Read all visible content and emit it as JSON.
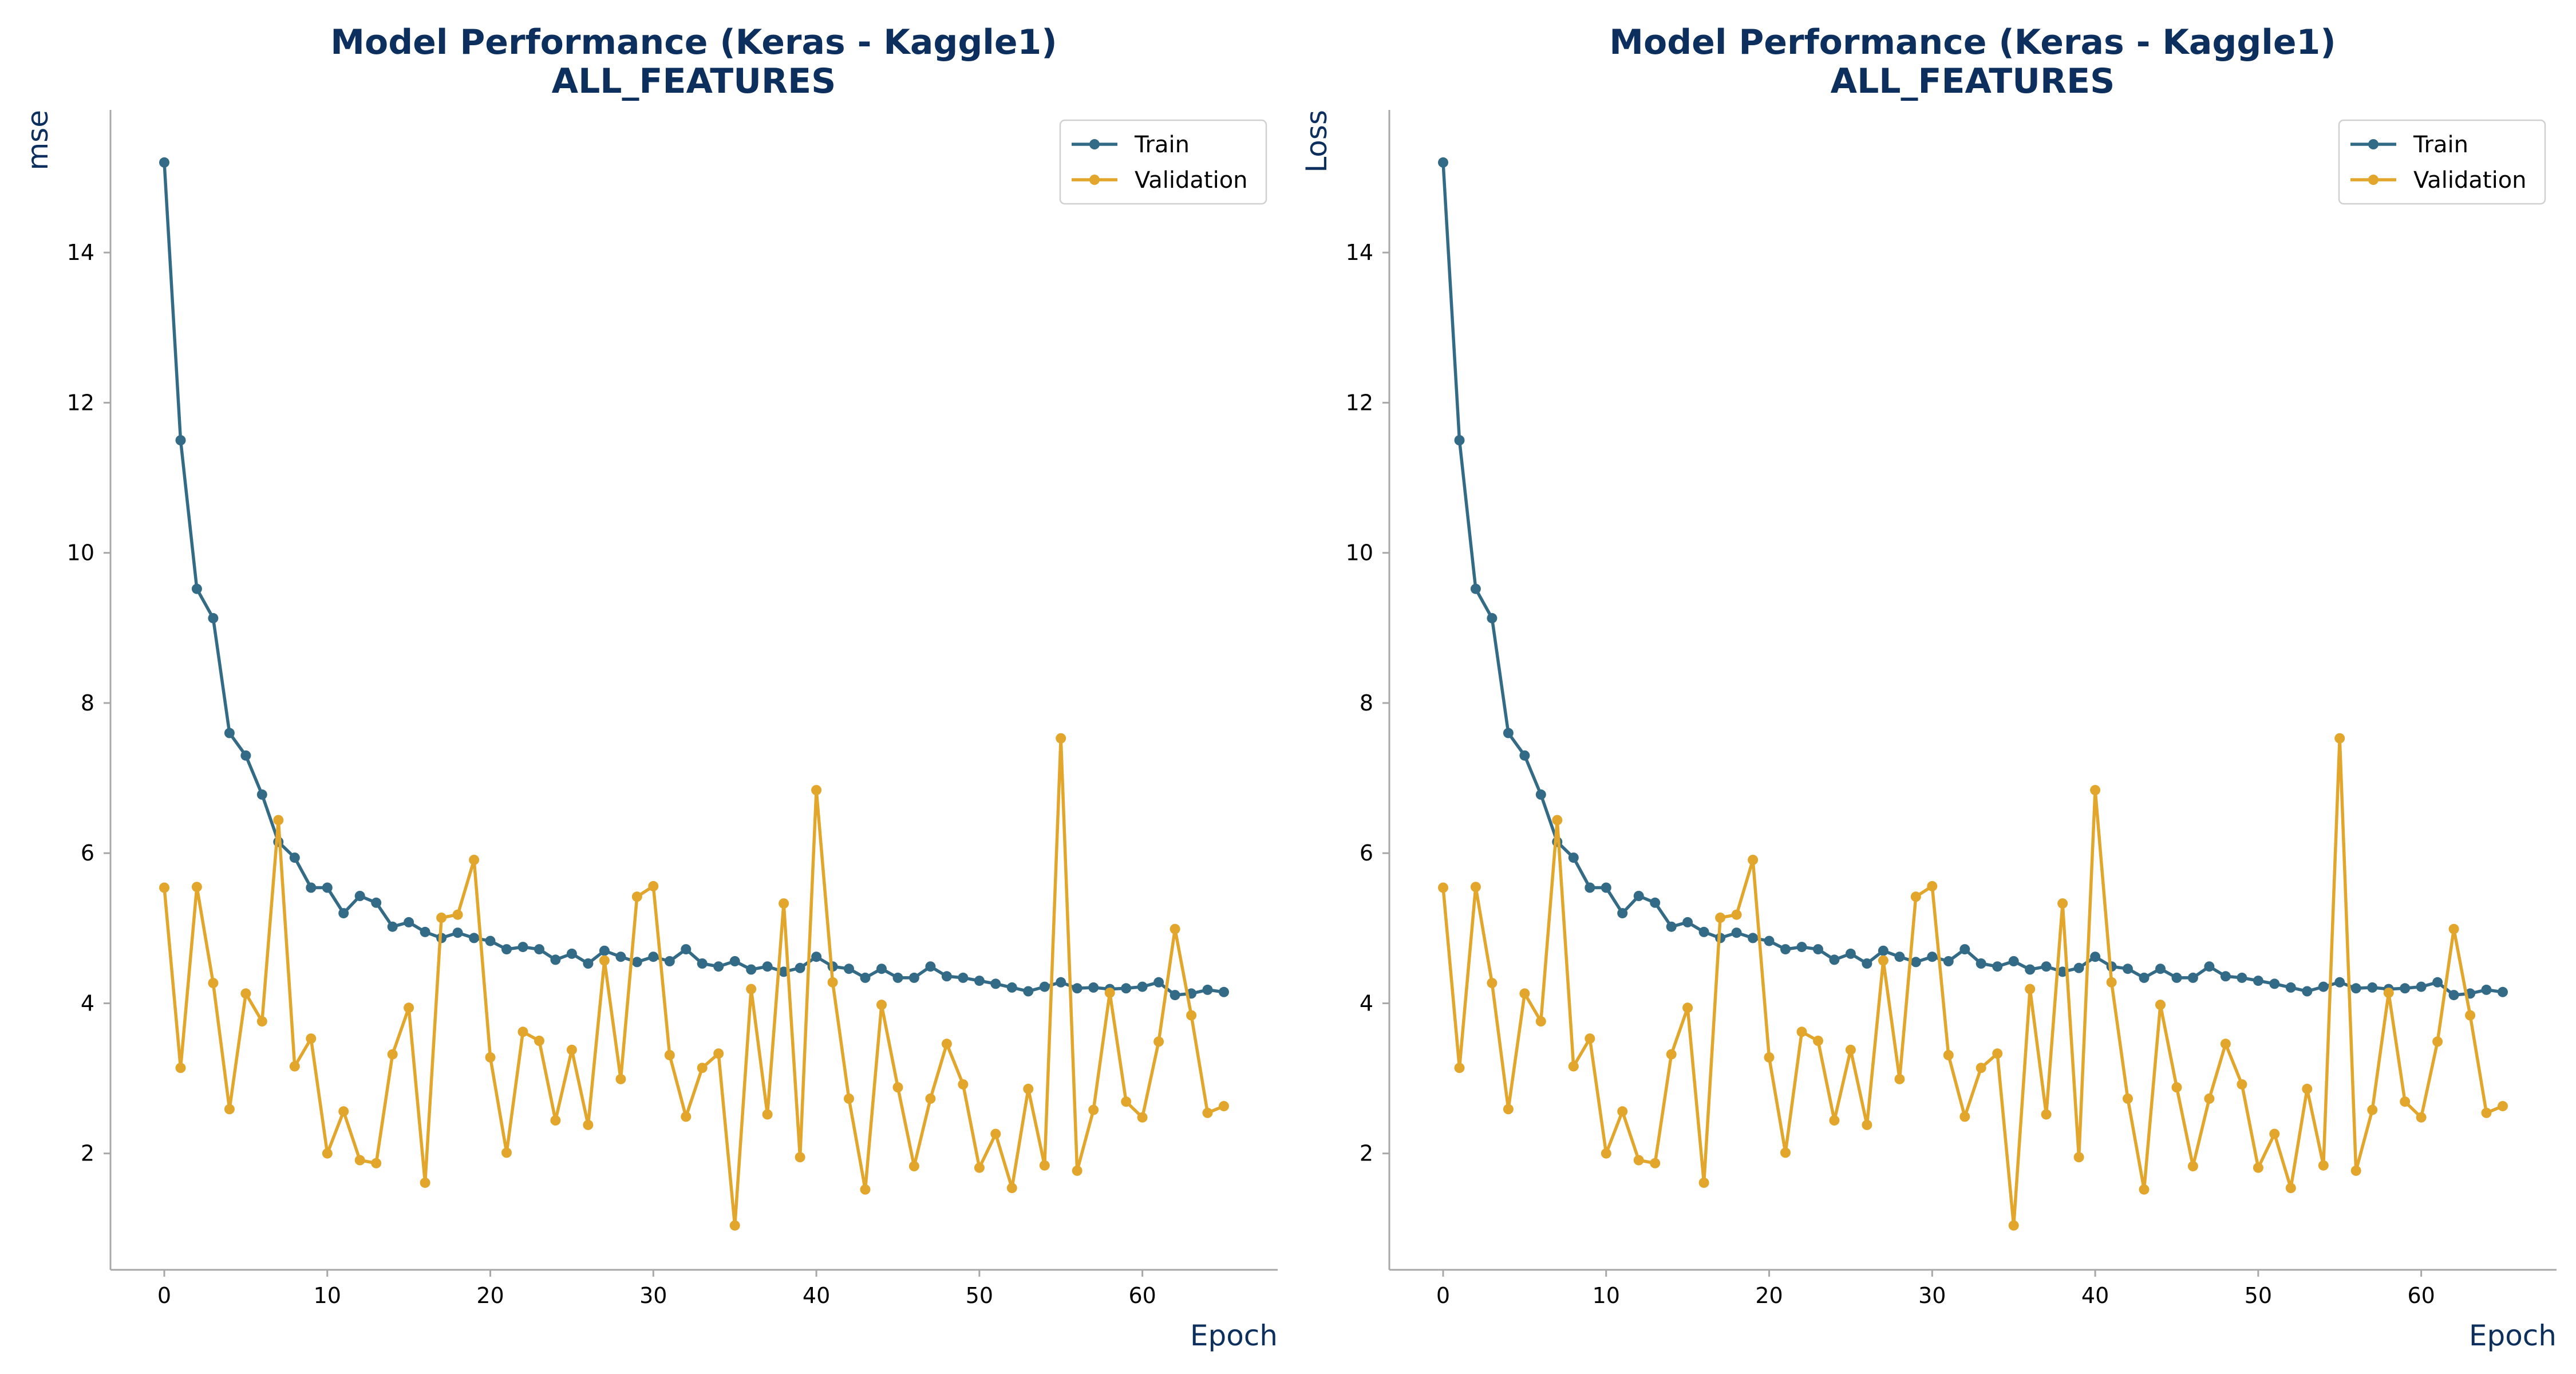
{
  "chart_data": [
    {
      "type": "line",
      "title": "Model Performance (Keras - Kaggle1)",
      "subtitle": "ALL_FEATURES",
      "xlabel": "Epoch",
      "ylabel": "mse",
      "xlim": [
        -3.3,
        68.3
      ],
      "ylim": [
        0.45,
        15.9
      ],
      "xticks": [
        0,
        10,
        20,
        30,
        40,
        50,
        60
      ],
      "yticks": [
        2,
        4,
        6,
        8,
        10,
        12,
        14
      ],
      "grid": false,
      "legend_position": "top-right",
      "x": [
        0,
        1,
        2,
        3,
        4,
        5,
        6,
        7,
        8,
        9,
        10,
        11,
        12,
        13,
        14,
        15,
        16,
        17,
        18,
        19,
        20,
        21,
        22,
        23,
        24,
        25,
        26,
        27,
        28,
        29,
        30,
        31,
        32,
        33,
        34,
        35,
        36,
        37,
        38,
        39,
        40,
        41,
        42,
        43,
        44,
        45,
        46,
        47,
        48,
        49,
        50,
        51,
        52,
        53,
        54,
        55,
        56,
        57,
        58,
        59,
        60,
        61,
        62,
        63,
        64,
        65
      ],
      "series": [
        {
          "name": "Train",
          "color": "#336b87",
          "values": [
            15.2,
            11.5,
            9.52,
            9.13,
            7.6,
            7.3,
            6.78,
            6.15,
            5.94,
            5.54,
            5.54,
            5.2,
            5.43,
            5.34,
            5.02,
            5.08,
            4.95,
            4.87,
            4.94,
            4.87,
            4.83,
            4.72,
            4.75,
            4.72,
            4.58,
            4.66,
            4.53,
            4.7,
            4.62,
            4.55,
            4.62,
            4.56,
            4.72,
            4.53,
            4.49,
            4.56,
            4.45,
            4.49,
            4.42,
            4.47,
            4.62,
            4.49,
            4.46,
            4.34,
            4.46,
            4.34,
            4.34,
            4.49,
            4.36,
            4.34,
            4.3,
            4.26,
            4.21,
            4.16,
            4.22,
            4.28,
            4.2,
            4.21,
            4.19,
            4.2,
            4.22,
            4.28,
            4.11,
            4.13,
            4.18,
            4.15
          ]
        },
        {
          "name": "Validation",
          "color": "#e1a62b",
          "values": [
            5.54,
            3.14,
            5.55,
            4.27,
            2.59,
            4.13,
            3.76,
            6.44,
            3.16,
            3.53,
            2.0,
            2.56,
            1.91,
            1.87,
            3.32,
            3.94,
            1.61,
            5.14,
            5.18,
            5.91,
            3.28,
            2.01,
            3.62,
            3.5,
            2.44,
            3.38,
            2.38,
            4.57,
            2.99,
            5.42,
            5.56,
            3.31,
            2.49,
            3.14,
            3.33,
            1.04,
            4.19,
            2.52,
            5.33,
            1.95,
            6.84,
            4.28,
            2.73,
            1.52,
            3.98,
            2.88,
            1.83,
            2.73,
            3.46,
            2.92,
            1.81,
            2.26,
            1.54,
            2.86,
            1.84,
            7.53,
            1.77,
            2.58,
            4.14,
            2.69,
            2.48,
            3.49,
            4.99,
            3.84,
            2.54,
            2.63
          ]
        }
      ]
    },
    {
      "type": "line",
      "title": "Model Performance (Keras - Kaggle1)",
      "subtitle": "ALL_FEATURES",
      "xlabel": "Epoch",
      "ylabel": "Loss",
      "xlim": [
        -3.3,
        68.3
      ],
      "ylim": [
        0.45,
        15.9
      ],
      "xticks": [
        0,
        10,
        20,
        30,
        40,
        50,
        60
      ],
      "yticks": [
        2,
        4,
        6,
        8,
        10,
        12,
        14
      ],
      "grid": false,
      "legend_position": "top-right",
      "x": [
        0,
        1,
        2,
        3,
        4,
        5,
        6,
        7,
        8,
        9,
        10,
        11,
        12,
        13,
        14,
        15,
        16,
        17,
        18,
        19,
        20,
        21,
        22,
        23,
        24,
        25,
        26,
        27,
        28,
        29,
        30,
        31,
        32,
        33,
        34,
        35,
        36,
        37,
        38,
        39,
        40,
        41,
        42,
        43,
        44,
        45,
        46,
        47,
        48,
        49,
        50,
        51,
        52,
        53,
        54,
        55,
        56,
        57,
        58,
        59,
        60,
        61,
        62,
        63,
        64,
        65
      ],
      "series": [
        {
          "name": "Train",
          "color": "#336b87",
          "values": [
            15.2,
            11.5,
            9.52,
            9.13,
            7.6,
            7.3,
            6.78,
            6.15,
            5.94,
            5.54,
            5.54,
            5.2,
            5.43,
            5.34,
            5.02,
            5.08,
            4.95,
            4.87,
            4.94,
            4.87,
            4.83,
            4.72,
            4.75,
            4.72,
            4.58,
            4.66,
            4.53,
            4.7,
            4.62,
            4.55,
            4.62,
            4.56,
            4.72,
            4.53,
            4.49,
            4.56,
            4.45,
            4.49,
            4.42,
            4.47,
            4.62,
            4.49,
            4.46,
            4.34,
            4.46,
            4.34,
            4.34,
            4.49,
            4.36,
            4.34,
            4.3,
            4.26,
            4.21,
            4.16,
            4.22,
            4.28,
            4.2,
            4.21,
            4.19,
            4.2,
            4.22,
            4.28,
            4.11,
            4.13,
            4.18,
            4.15
          ]
        },
        {
          "name": "Validation",
          "color": "#e1a62b",
          "values": [
            5.54,
            3.14,
            5.55,
            4.27,
            2.59,
            4.13,
            3.76,
            6.44,
            3.16,
            3.53,
            2.0,
            2.56,
            1.91,
            1.87,
            3.32,
            3.94,
            1.61,
            5.14,
            5.18,
            5.91,
            3.28,
            2.01,
            3.62,
            3.5,
            2.44,
            3.38,
            2.38,
            4.57,
            2.99,
            5.42,
            5.56,
            3.31,
            2.49,
            3.14,
            3.33,
            1.04,
            4.19,
            2.52,
            5.33,
            1.95,
            6.84,
            4.28,
            2.73,
            1.52,
            3.98,
            2.88,
            1.83,
            2.73,
            3.46,
            2.92,
            1.81,
            2.26,
            1.54,
            2.86,
            1.84,
            7.53,
            1.77,
            2.58,
            4.14,
            2.69,
            2.48,
            3.49,
            4.99,
            3.84,
            2.54,
            2.63
          ]
        }
      ]
    }
  ]
}
